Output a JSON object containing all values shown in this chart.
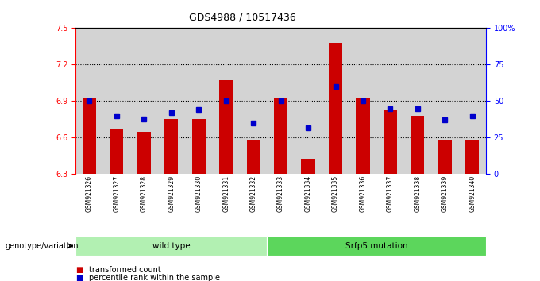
{
  "title": "GDS4988 / 10517436",
  "samples": [
    "GSM921326",
    "GSM921327",
    "GSM921328",
    "GSM921329",
    "GSM921330",
    "GSM921331",
    "GSM921332",
    "GSM921333",
    "GSM921334",
    "GSM921335",
    "GSM921336",
    "GSM921337",
    "GSM921338",
    "GSM921339",
    "GSM921340"
  ],
  "bar_values": [
    6.92,
    6.67,
    6.65,
    6.75,
    6.75,
    7.07,
    6.58,
    6.93,
    6.43,
    7.38,
    6.93,
    6.83,
    6.78,
    6.58,
    6.58
  ],
  "percentile_values": [
    50,
    40,
    38,
    42,
    44,
    50,
    35,
    50,
    32,
    60,
    50,
    45,
    45,
    37,
    40
  ],
  "ymin": 6.3,
  "ymax": 7.5,
  "yticks": [
    6.3,
    6.6,
    6.9,
    7.2,
    7.5
  ],
  "right_yticks": [
    0,
    25,
    50,
    75,
    100
  ],
  "right_ytick_labels": [
    "0",
    "25",
    "50",
    "75",
    "100%"
  ],
  "bar_color": "#cc0000",
  "dot_color": "#0000cc",
  "bar_width": 0.5,
  "groups": [
    {
      "label": "wild type",
      "start": 0,
      "end": 7
    },
    {
      "label": "Srfp5 mutation",
      "start": 7,
      "end": 15
    }
  ],
  "group_colors": [
    "#b2f0b2",
    "#5cd65c"
  ],
  "genotype_label": "genotype/variation",
  "legend_items": [
    {
      "label": "transformed count",
      "color": "#cc0000"
    },
    {
      "label": "percentile rank within the sample",
      "color": "#0000cc"
    }
  ],
  "bg_color": "#ffffff",
  "axis_area_bg": "#d3d3d3"
}
